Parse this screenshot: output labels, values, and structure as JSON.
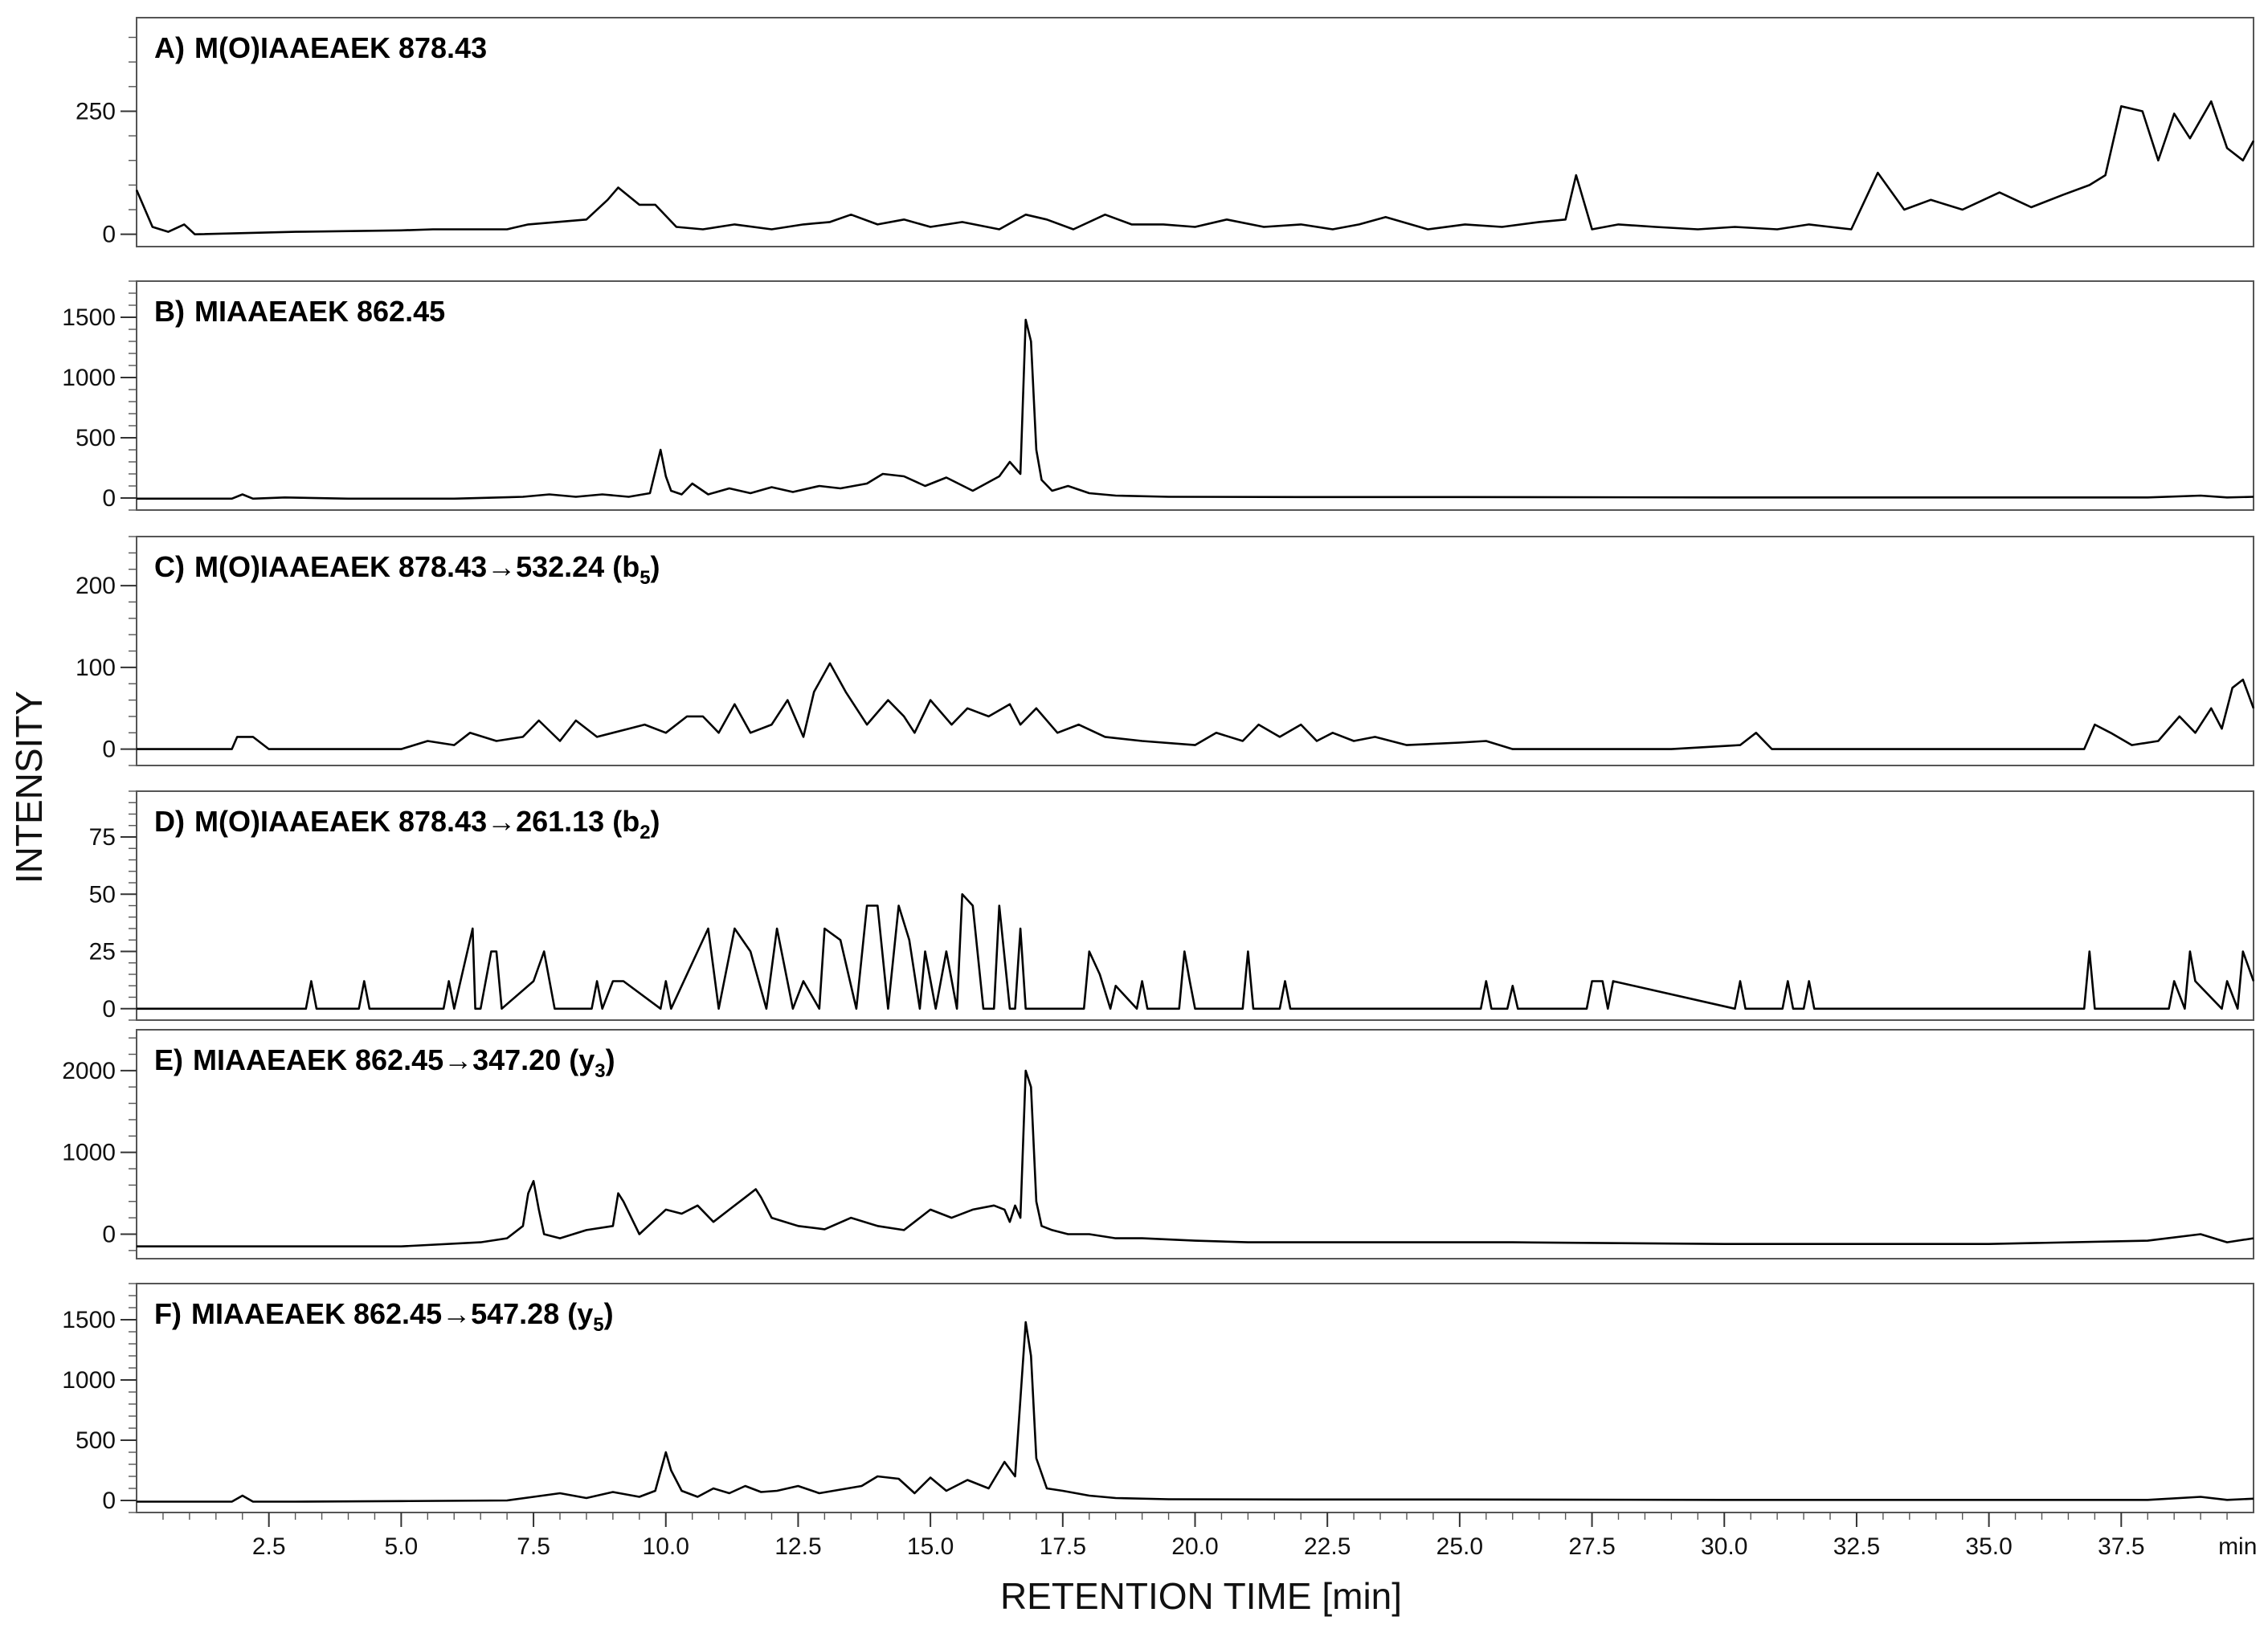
{
  "chart_data": {
    "type": "line",
    "xlabel": "RETENTION TIME [min]",
    "ylabel": "INTENSITY",
    "x_unit_label": "min",
    "xlim": [
      0,
      40
    ],
    "xticks": [
      "2.5",
      "5.0",
      "7.5",
      "10.0",
      "12.5",
      "15.0",
      "17.5",
      "20.0",
      "22.5",
      "25.0",
      "27.5",
      "30.0",
      "32.5",
      "35.0",
      "37.5"
    ],
    "panels": [
      {
        "label": "A)",
        "title": "M(O)IAAEAEK 878.43",
        "ion_label": "",
        "yticks": [
          "0",
          "250"
        ],
        "ylim": [
          -25,
          440
        ],
        "x": [
          0,
          0.3,
          0.6,
          0.9,
          1.1,
          3.0,
          5.0,
          5.6,
          6.2,
          7.0,
          7.4,
          8.5,
          8.9,
          9.1,
          9.5,
          9.8,
          10.2,
          10.7,
          11.3,
          12.0,
          12.6,
          13.1,
          13.5,
          14.0,
          14.5,
          15.0,
          15.6,
          16.3,
          16.8,
          17.2,
          17.7,
          18.3,
          18.8,
          19.4,
          20.0,
          20.6,
          21.3,
          22.0,
          22.6,
          23.1,
          23.6,
          24.4,
          25.1,
          25.8,
          26.5,
          27.0,
          27.2,
          27.5,
          28.0,
          28.7,
          29.5,
          30.2,
          31.0,
          31.6,
          32.0,
          32.4,
          32.9,
          33.4,
          33.9,
          34.5,
          35.2,
          35.8,
          36.4,
          36.9,
          37.2,
          37.5,
          37.9,
          38.2,
          38.5,
          38.8,
          39.2,
          39.5,
          39.8,
          40.0
        ],
        "values": [
          90,
          15,
          5,
          20,
          0,
          5,
          8,
          10,
          10,
          10,
          20,
          30,
          70,
          95,
          60,
          60,
          15,
          10,
          20,
          10,
          20,
          25,
          40,
          20,
          30,
          15,
          25,
          10,
          40,
          30,
          10,
          40,
          20,
          20,
          15,
          30,
          15,
          20,
          10,
          20,
          35,
          10,
          20,
          15,
          25,
          30,
          120,
          10,
          20,
          15,
          10,
          15,
          10,
          20,
          15,
          10,
          125,
          50,
          70,
          50,
          85,
          55,
          80,
          100,
          120,
          260,
          250,
          150,
          245,
          195,
          270,
          175,
          150,
          190
        ]
      },
      {
        "label": "B)",
        "title": "MIAAEAEK 862.45",
        "ion_label": "",
        "yticks": [
          "0",
          "500",
          "1000",
          "1500"
        ],
        "ylim": [
          -100,
          1800
        ],
        "x": [
          0,
          1.8,
          2.0,
          2.2,
          2.8,
          4.0,
          6.0,
          7.3,
          7.8,
          8.3,
          8.8,
          9.3,
          9.7,
          9.9,
          10.0,
          10.1,
          10.3,
          10.5,
          10.8,
          11.2,
          11.6,
          12.0,
          12.4,
          12.9,
          13.3,
          13.8,
          14.1,
          14.5,
          14.9,
          15.3,
          15.8,
          16.3,
          16.5,
          16.7,
          16.8,
          16.9,
          17.0,
          17.1,
          17.3,
          17.6,
          18.0,
          18.5,
          19.5,
          22.0,
          25.0,
          30.0,
          35.0,
          38.0,
          39.0,
          39.5,
          40.0
        ],
        "values": [
          -5,
          -5,
          30,
          -5,
          5,
          -5,
          -5,
          10,
          30,
          10,
          30,
          10,
          40,
          400,
          180,
          60,
          30,
          120,
          30,
          80,
          40,
          90,
          50,
          100,
          80,
          120,
          200,
          180,
          100,
          170,
          60,
          180,
          300,
          200,
          1480,
          1300,
          400,
          150,
          60,
          100,
          40,
          20,
          10,
          8,
          8,
          5,
          5,
          5,
          20,
          5,
          10
        ]
      },
      {
        "label": "C)",
        "title": "M(O)IAAEAEK 878.43→532.24 (b",
        "ion_label": "5",
        "title_tail": ")",
        "yticks": [
          "0",
          "100",
          "200"
        ],
        "ylim": [
          -20,
          260
        ],
        "x": [
          0,
          1.8,
          1.9,
          2.2,
          2.5,
          3.3,
          5.0,
          5.5,
          6.0,
          6.3,
          6.8,
          7.3,
          7.6,
          8.0,
          8.3,
          8.7,
          9.3,
          9.6,
          10.0,
          10.4,
          10.7,
          11.0,
          11.3,
          11.6,
          12.0,
          12.3,
          12.6,
          12.8,
          13.1,
          13.4,
          13.8,
          14.2,
          14.5,
          14.7,
          15.0,
          15.4,
          15.7,
          16.1,
          16.5,
          16.7,
          17.0,
          17.4,
          17.8,
          18.3,
          19.0,
          20.0,
          20.4,
          20.9,
          21.2,
          21.6,
          22.0,
          22.3,
          22.6,
          23.0,
          23.4,
          24.0,
          25.0,
          25.5,
          26.0,
          29.0,
          30.3,
          30.6,
          30.9,
          35.0,
          36.8,
          37.0,
          37.3,
          37.7,
          38.2,
          38.6,
          38.9,
          39.2,
          39.4,
          39.6,
          39.8,
          40.0
        ],
        "values": [
          0,
          0,
          15,
          15,
          0,
          0,
          0,
          10,
          5,
          20,
          10,
          15,
          35,
          10,
          35,
          15,
          25,
          30,
          20,
          40,
          40,
          20,
          55,
          20,
          30,
          60,
          15,
          70,
          105,
          70,
          30,
          60,
          40,
          20,
          60,
          30,
          50,
          40,
          55,
          30,
          50,
          20,
          30,
          15,
          10,
          5,
          20,
          10,
          30,
          15,
          30,
          10,
          20,
          10,
          15,
          5,
          8,
          10,
          0,
          0,
          5,
          20,
          0,
          0,
          0,
          30,
          20,
          5,
          10,
          40,
          20,
          50,
          25,
          75,
          85,
          50
        ]
      },
      {
        "label": "D)",
        "title": "M(O)IAAEAEK 878.43→261.13 (b",
        "ion_label": "2",
        "title_tail": ")",
        "yticks": [
          "0",
          "25",
          "50",
          "75"
        ],
        "ylim": [
          -5,
          95
        ],
        "x": [
          0,
          3.2,
          3.3,
          3.4,
          4.2,
          4.3,
          4.4,
          5.8,
          5.9,
          6.0,
          6.35,
          6.4,
          6.5,
          6.7,
          6.8,
          6.9,
          7.5,
          7.7,
          7.9,
          8.6,
          8.7,
          8.8,
          9.0,
          9.2,
          9.9,
          10.0,
          10.1,
          10.6,
          10.8,
          11.0,
          11.3,
          11.6,
          11.9,
          12.1,
          12.4,
          12.6,
          12.9,
          13.0,
          13.3,
          13.6,
          13.8,
          14.0,
          14.2,
          14.4,
          14.6,
          14.8,
          14.9,
          15.1,
          15.3,
          15.5,
          15.6,
          15.8,
          16.0,
          16.2,
          16.3,
          16.5,
          16.6,
          16.7,
          16.8,
          17.9,
          18.0,
          18.2,
          18.4,
          18.5,
          18.9,
          19.0,
          19.1,
          19.7,
          19.8,
          19.9,
          20.0,
          20.9,
          21.0,
          21.1,
          21.6,
          21.7,
          21.8,
          25.4,
          25.5,
          25.6,
          25.9,
          26.0,
          26.1,
          27.4,
          27.5,
          27.7,
          27.8,
          27.9,
          30.2,
          30.3,
          30.4,
          31.1,
          31.2,
          31.3,
          31.5,
          31.6,
          31.7,
          36.8,
          36.9,
          37.0,
          38.4,
          38.5,
          38.7,
          38.8,
          38.9,
          39.4,
          39.5,
          39.7,
          39.8,
          40.0
        ],
        "values": [
          0,
          0,
          12,
          0,
          0,
          12,
          0,
          0,
          12,
          0,
          35,
          0,
          0,
          25,
          25,
          0,
          12,
          25,
          0,
          0,
          12,
          0,
          12,
          12,
          0,
          12,
          0,
          25,
          35,
          0,
          35,
          25,
          0,
          35,
          0,
          12,
          0,
          35,
          30,
          0,
          45,
          45,
          0,
          45,
          30,
          0,
          25,
          0,
          25,
          0,
          50,
          45,
          0,
          0,
          45,
          0,
          0,
          35,
          0,
          0,
          25,
          15,
          0,
          10,
          0,
          12,
          0,
          0,
          25,
          12,
          0,
          0,
          25,
          0,
          0,
          12,
          0,
          0,
          12,
          0,
          0,
          10,
          0,
          0,
          12,
          12,
          0,
          12,
          0,
          12,
          0,
          0,
          12,
          0,
          0,
          12,
          0,
          0,
          25,
          0,
          0,
          12,
          0,
          25,
          12,
          0,
          12,
          0,
          25,
          12
        ]
      },
      {
        "label": "E)",
        "title": "MIAAEAEK 862.45→347.20 (y",
        "ion_label": "3",
        "title_tail": ")",
        "yticks": [
          "0",
          "1000",
          "2000"
        ],
        "ylim": [
          -300,
          2500
        ],
        "x": [
          0,
          2.0,
          5.0,
          6.5,
          7.0,
          7.3,
          7.4,
          7.5,
          7.6,
          7.7,
          8.0,
          8.5,
          9.0,
          9.1,
          9.2,
          9.5,
          10.0,
          10.3,
          10.6,
          10.9,
          11.2,
          11.5,
          11.7,
          11.8,
          12.0,
          12.5,
          13.0,
          13.5,
          14.0,
          14.5,
          15.0,
          15.4,
          15.8,
          16.2,
          16.4,
          16.5,
          16.6,
          16.7,
          16.8,
          16.9,
          17.0,
          17.1,
          17.3,
          17.6,
          18.0,
          18.5,
          19.0,
          20.0,
          21.0,
          23.0,
          25.0,
          26.0,
          30.0,
          35.0,
          38.0,
          39.0,
          39.5,
          40.0
        ],
        "values": [
          -150,
          -150,
          -150,
          -100,
          -50,
          100,
          500,
          650,
          300,
          0,
          -50,
          50,
          100,
          500,
          400,
          0,
          300,
          250,
          350,
          150,
          300,
          450,
          550,
          450,
          200,
          100,
          60,
          200,
          100,
          50,
          300,
          200,
          300,
          350,
          300,
          150,
          350,
          200,
          2000,
          1800,
          400,
          100,
          50,
          0,
          0,
          -50,
          -50,
          -80,
          -100,
          -100,
          -100,
          -100,
          -120,
          -120,
          -80,
          0,
          -100,
          -50
        ]
      },
      {
        "label": "F)",
        "title": "MIAAEAEK 862.45→547.28 (y",
        "ion_label": "5",
        "title_tail": ")",
        "yticks": [
          "0",
          "500",
          "1000",
          "1500"
        ],
        "ylim": [
          -100,
          1800
        ],
        "x": [
          0,
          1.8,
          2.0,
          2.2,
          3.0,
          5.0,
          7.0,
          7.5,
          8.0,
          8.5,
          9.0,
          9.5,
          9.8,
          10.0,
          10.1,
          10.3,
          10.6,
          10.9,
          11.2,
          11.5,
          11.8,
          12.1,
          12.5,
          12.9,
          13.3,
          13.7,
          14.0,
          14.4,
          14.7,
          15.0,
          15.3,
          15.7,
          16.1,
          16.4,
          16.6,
          16.8,
          16.9,
          17.0,
          17.2,
          17.5,
          18.0,
          18.5,
          19.5,
          22.0,
          25.0,
          30.0,
          35.0,
          38.0,
          39.0,
          39.5,
          40.0
        ],
        "values": [
          -10,
          -10,
          40,
          -10,
          -10,
          -5,
          0,
          30,
          60,
          20,
          70,
          30,
          80,
          400,
          250,
          80,
          30,
          100,
          60,
          120,
          70,
          80,
          120,
          60,
          90,
          120,
          200,
          180,
          60,
          190,
          80,
          170,
          100,
          320,
          200,
          1480,
          1200,
          350,
          100,
          80,
          40,
          20,
          10,
          8,
          8,
          5,
          5,
          5,
          30,
          5,
          15
        ]
      }
    ]
  }
}
